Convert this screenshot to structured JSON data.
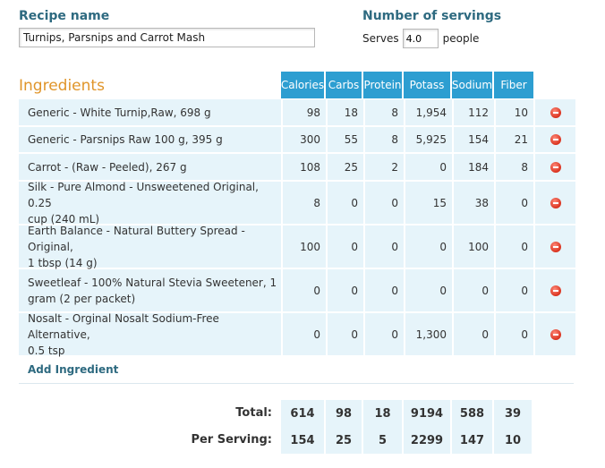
{
  "recipe": {
    "name_label": "Recipe name",
    "name_value": "Turnips, Parsnips and Carrot Mash"
  },
  "servings": {
    "label": "Number of servings",
    "prefix": "Serves",
    "value": "4.0",
    "suffix": "people"
  },
  "ingredients": {
    "heading": "Ingredients",
    "columns": [
      "Calories",
      "Carbs",
      "Protein",
      "Potass",
      "Sodium",
      "Fiber"
    ],
    "rows": [
      {
        "line1": "Generic - White Turnip,Raw, 698 g",
        "line2": "",
        "values": [
          "98",
          "18",
          "8",
          "1,954",
          "112",
          "10"
        ]
      },
      {
        "line1": "Generic - Parsnips Raw 100 g, 395 g",
        "line2": "",
        "values": [
          "300",
          "55",
          "8",
          "5,925",
          "154",
          "21"
        ]
      },
      {
        "line1": "Carrot - (Raw - Peeled), 267 g",
        "line2": "",
        "values": [
          "108",
          "25",
          "2",
          "0",
          "184",
          "8"
        ]
      },
      {
        "line1": "Silk - Pure Almond - Unsweetened Original, 0.25",
        "line2": "cup (240 mL)",
        "values": [
          "8",
          "0",
          "0",
          "15",
          "38",
          "0"
        ]
      },
      {
        "line1": "Earth Balance - Natural Buttery Spread - Original,",
        "line2": "1 tbsp (14 g)",
        "values": [
          "100",
          "0",
          "0",
          "0",
          "100",
          "0"
        ]
      },
      {
        "line1": "Sweetleaf - 100% Natural Stevia Sweetener, 1",
        "line2": "gram (2 per packet)",
        "values": [
          "0",
          "0",
          "0",
          "0",
          "0",
          "0"
        ]
      },
      {
        "line1": "Nosalt - Orginal Nosalt Sodium-Free Alternative,",
        "line2": "0.5 tsp",
        "values": [
          "0",
          "0",
          "0",
          "1,300",
          "0",
          "0"
        ]
      }
    ],
    "add_link": "Add Ingredient"
  },
  "totals": {
    "total_label": "Total:",
    "total_values": [
      "614",
      "98",
      "18",
      "9194",
      "588",
      "39"
    ],
    "per_serving_label": "Per Serving:",
    "per_serving_values": [
      "154",
      "25",
      "5",
      "2299",
      "147",
      "10"
    ]
  },
  "colors": {
    "header_bg": "#2d9ed1",
    "row_bg": "#e6f4fa",
    "heading_orange": "#e0952a",
    "label_teal": "#2e6a80",
    "remove_red": "#d9321e"
  },
  "icons": {
    "remove": "remove-icon"
  }
}
